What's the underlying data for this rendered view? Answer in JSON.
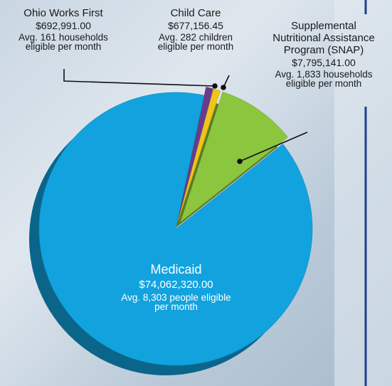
{
  "chart_data": {
    "type": "pie",
    "categories": [
      "Ohio Works First",
      "Child Care",
      "Supplemental Nutritional Assistance Program (SNAP)",
      "Medicaid"
    ],
    "values": [
      692991.0,
      677156.45,
      7795141.0,
      74062320.0
    ],
    "value_labels": [
      "$692,991.00",
      "$677,156.45",
      "$7,795,141.00",
      "$74,062,320.00"
    ],
    "annotations": [
      "Avg. 161 households eligible per month",
      "Avg. 282 children eligible per month",
      "Avg. 1,833  households eligible per month",
      "Avg. 8,303 people eligible per month"
    ],
    "colors": [
      "#6a3b8c",
      "#f0c419",
      "#8cc63f",
      "#12a3df"
    ]
  }
}
